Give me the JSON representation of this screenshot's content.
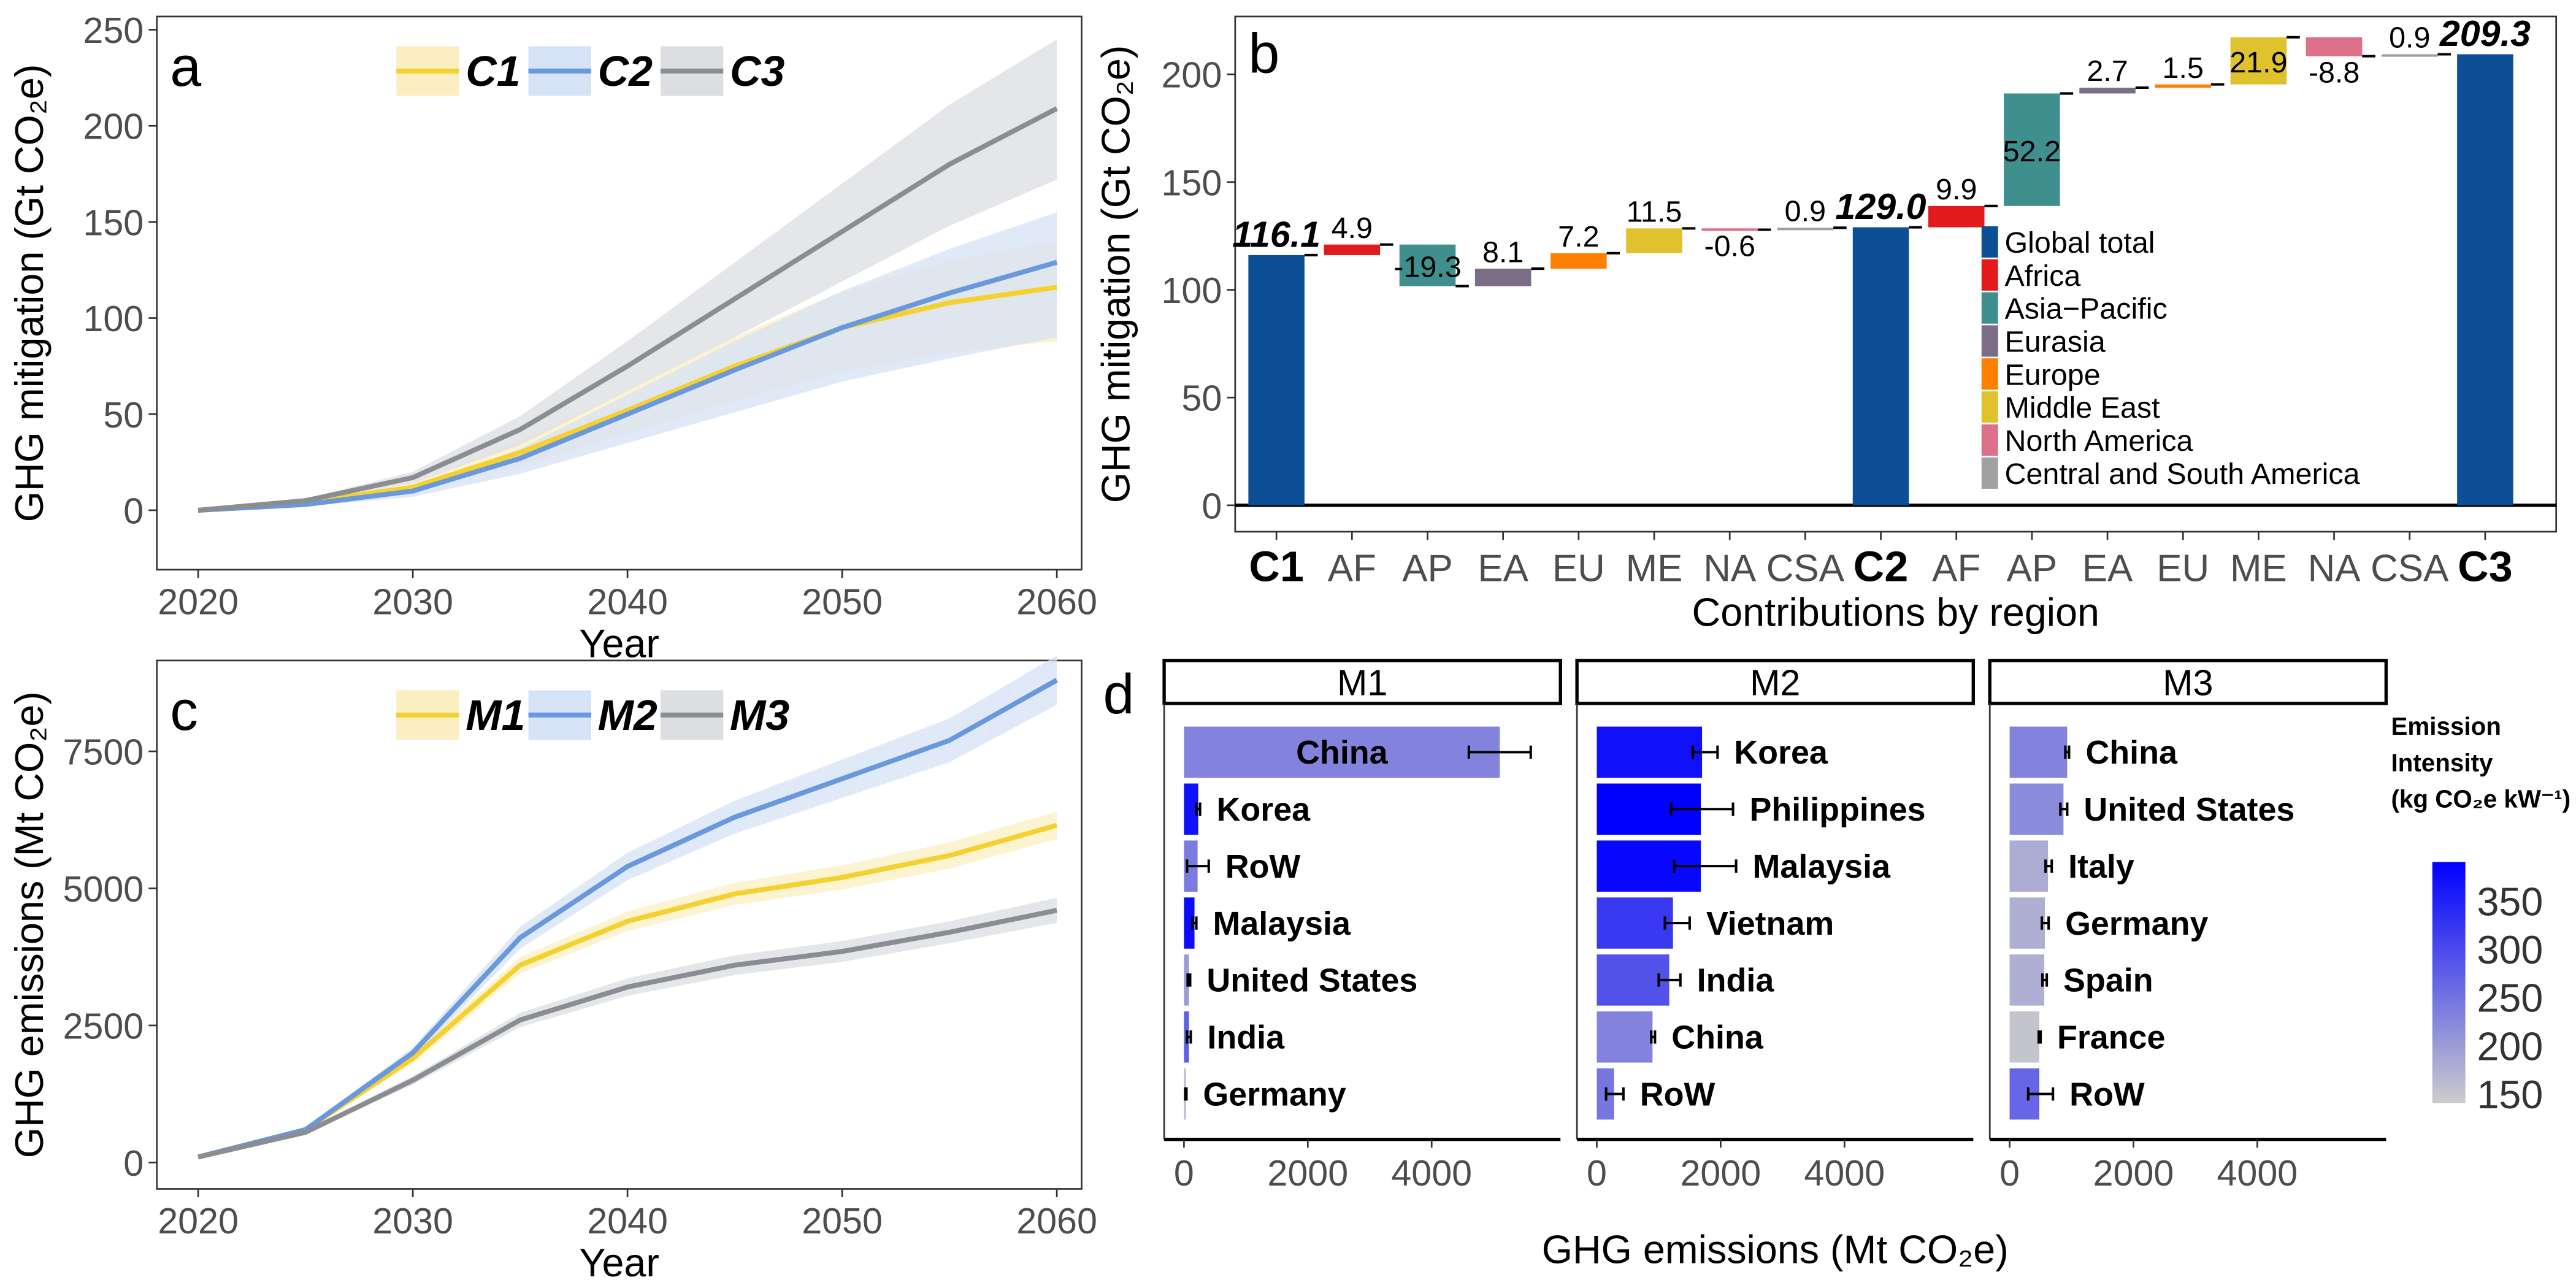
{
  "chart_data": [
    {
      "type": "line",
      "panel_label": "a",
      "xlabel": "Year",
      "ylabel": "GHG mitigation (Gt CO₂e)",
      "xlim": [
        2020,
        2060
      ],
      "ylim": [
        0,
        250
      ],
      "x_ticks": [
        2020,
        2030,
        2040,
        2050,
        2060
      ],
      "y_ticks": [
        0,
        50,
        100,
        150,
        200,
        250
      ],
      "legend_position": "top",
      "grid": false,
      "x": [
        2020,
        2025,
        2030,
        2035,
        2040,
        2045,
        2050,
        2055,
        2060
      ],
      "series": [
        {
          "name": "C1",
          "color": "#f5d130",
          "band_color": "#fbefc2",
          "values": [
            0,
            4,
            12,
            30,
            52,
            75,
            95,
            108,
            116
          ],
          "upper": [
            0,
            5,
            14,
            36,
            62,
            90,
            114,
            130,
            140
          ],
          "lower": [
            0,
            3,
            9,
            23,
            40,
            57,
            72,
            82,
            88
          ]
        },
        {
          "name": "C2",
          "color": "#6a98dc",
          "band_color": "#d6e2f6",
          "values": [
            0,
            3,
            10,
            27,
            50,
            73,
            95,
            113,
            129
          ],
          "upper": [
            0,
            4,
            12,
            32,
            60,
            88,
            114,
            136,
            155
          ],
          "lower": [
            0,
            2,
            7,
            19,
            35,
            51,
            67,
            79,
            90
          ]
        },
        {
          "name": "C3",
          "color": "#8a8d92",
          "band_color": "#dcdee1",
          "values": [
            0,
            5,
            17,
            42,
            75,
            110,
            145,
            180,
            209
          ],
          "upper": [
            0,
            6,
            20,
            49,
            88,
            129,
            170,
            211,
            245
          ],
          "lower": [
            0,
            4,
            14,
            34,
            62,
            90,
            119,
            148,
            172
          ]
        }
      ]
    },
    {
      "type": "bar",
      "subtype": "waterfall",
      "panel_label": "b",
      "xlabel": "Contributions by region",
      "ylabel": "GHG mitigation (Gt CO₂e)",
      "ylim": [
        0,
        225
      ],
      "y_ticks": [
        0,
        50,
        100,
        150,
        200
      ],
      "categories": [
        "C1",
        "AF",
        "AP",
        "EA",
        "EU",
        "ME",
        "NA",
        "CSA",
        "C2",
        "AF",
        "AP",
        "EA",
        "EU",
        "ME",
        "NA",
        "CSA",
        "C3"
      ],
      "kinds": [
        "total",
        "AF",
        "AP",
        "EA",
        "EU",
        "ME",
        "NA",
        "CSA",
        "total",
        "AF",
        "AP",
        "EA",
        "EU",
        "ME",
        "NA",
        "CSA",
        "total"
      ],
      "values": [
        116.1,
        4.9,
        -19.3,
        8.1,
        7.2,
        11.5,
        -0.6,
        0.9,
        129.0,
        9.9,
        52.2,
        2.7,
        1.5,
        21.9,
        -8.8,
        0.9,
        209.3
      ],
      "labels": [
        "116.1",
        "4.9",
        "-19.3",
        "8.1",
        "7.2",
        "11.5",
        "-0.6",
        "0.9",
        "129.0",
        "9.9",
        "52.2",
        "2.7",
        "1.5",
        "21.9",
        "-8.8",
        "0.9",
        "209.3"
      ],
      "legend_position": "center-right",
      "legend": [
        {
          "key": "total",
          "name": "Global total",
          "color": "#0d4f96"
        },
        {
          "key": "AF",
          "name": "Africa",
          "color": "#e31a1c"
        },
        {
          "key": "AP",
          "name": "Asia−Pacific",
          "color": "#3f8f8f"
        },
        {
          "key": "EA",
          "name": "Eurasia",
          "color": "#7b6d85"
        },
        {
          "key": "EU",
          "name": "Europe",
          "color": "#ff7f00"
        },
        {
          "key": "ME",
          "name": "Middle East",
          "color": "#e0c22e"
        },
        {
          "key": "NA",
          "name": "North America",
          "color": "#db7088"
        },
        {
          "key": "CSA",
          "name": "Central and South America",
          "color": "#a0a0a0"
        }
      ]
    },
    {
      "type": "line",
      "panel_label": "c",
      "xlabel": "Year",
      "ylabel": "GHG emissions (Mt CO₂e)",
      "xlim": [
        2020,
        2060
      ],
      "ylim": [
        0,
        9300
      ],
      "x_ticks": [
        2020,
        2030,
        2040,
        2050,
        2060
      ],
      "y_ticks": [
        0,
        2500,
        5000,
        7500
      ],
      "legend_position": "top",
      "grid": false,
      "x": [
        2020,
        2025,
        2030,
        2035,
        2040,
        2045,
        2050,
        2055,
        2060
      ],
      "series": [
        {
          "name": "M1",
          "color": "#f5d130",
          "band_color": "#fbefc2",
          "values": [
            100,
            600,
            1900,
            3600,
            4400,
            4900,
            5200,
            5600,
            6150
          ],
          "upper": [
            110,
            630,
            2000,
            3750,
            4580,
            5100,
            5420,
            5840,
            6400
          ],
          "lower": [
            90,
            570,
            1800,
            3450,
            4220,
            4700,
            4980,
            5360,
            5900
          ]
        },
        {
          "name": "M2",
          "color": "#6a98dc",
          "band_color": "#d6e2f6",
          "values": [
            100,
            600,
            2000,
            4100,
            5400,
            6300,
            7000,
            7700,
            8800
          ],
          "upper": [
            110,
            630,
            2100,
            4300,
            5650,
            6600,
            7350,
            8100,
            9250
          ],
          "lower": [
            90,
            570,
            1900,
            3900,
            5150,
            6000,
            6650,
            7300,
            8350
          ]
        },
        {
          "name": "M3",
          "color": "#8a8d92",
          "band_color": "#dcdee1",
          "values": [
            100,
            550,
            1500,
            2600,
            3200,
            3600,
            3850,
            4200,
            4600
          ],
          "upper": [
            110,
            580,
            1580,
            2730,
            3360,
            3780,
            4040,
            4400,
            4830
          ],
          "lower": [
            90,
            520,
            1420,
            2470,
            3040,
            3420,
            3660,
            4000,
            4370
          ]
        }
      ]
    },
    {
      "type": "bar",
      "orientation": "horizontal",
      "panel_label": "d",
      "xlabel": "GHG emissions (Mt CO₂e)",
      "xlim": [
        0,
        5800
      ],
      "x_ticks": [
        0,
        2000,
        4000
      ],
      "colorbar": {
        "title": [
          "Emission",
          "Intensity",
          "(kg CO₂e kW⁻¹)"
        ],
        "ticks": [
          150,
          200,
          250,
          300,
          350
        ],
        "range": [
          140,
          390
        ],
        "low_color": "#cccccc",
        "high_color": "#0000ff"
      },
      "facets": [
        {
          "name": "M1",
          "bars": [
            {
              "label": "China",
              "value": 5100,
              "err": [
                4600,
                5600
              ],
              "intensity": 230
            },
            {
              "label": "Korea",
              "value": 230,
              "err": [
                200,
                260
              ],
              "intensity": 370
            },
            {
              "label": "RoW",
              "value": 220,
              "err": [
                50,
                400
              ],
              "intensity": 240
            },
            {
              "label": "Malaysia",
              "value": 170,
              "err": [
                140,
                200
              ],
              "intensity": 375
            },
            {
              "label": "United States",
              "value": 80,
              "err": [
                60,
                100
              ],
              "intensity": 200
            },
            {
              "label": "India",
              "value": 80,
              "err": [
                50,
                110
              ],
              "intensity": 275
            },
            {
              "label": "Germany",
              "value": 30,
              "err": [
                20,
                40
              ],
              "intensity": 165
            }
          ]
        },
        {
          "name": "M2",
          "bars": [
            {
              "label": "Korea",
              "value": 1700,
              "err": [
                1550,
                1950
              ],
              "intensity": 370
            },
            {
              "label": "Philippines",
              "value": 1680,
              "err": [
                1200,
                2200
              ],
              "intensity": 390
            },
            {
              "label": "Malaysia",
              "value": 1680,
              "err": [
                1250,
                2250
              ],
              "intensity": 380
            },
            {
              "label": "Vietnam",
              "value": 1230,
              "err": [
                1100,
                1500
              ],
              "intensity": 320
            },
            {
              "label": "India",
              "value": 1170,
              "err": [
                1000,
                1350
              ],
              "intensity": 290
            },
            {
              "label": "China",
              "value": 900,
              "err": [
                880,
                940
              ],
              "intensity": 230
            },
            {
              "label": "RoW",
              "value": 280,
              "err": [
                150,
                430
              ],
              "intensity": 245
            }
          ]
        },
        {
          "name": "M3",
          "bars": [
            {
              "label": "China",
              "value": 930,
              "err": [
                900,
                960
              ],
              "intensity": 230
            },
            {
              "label": "United States",
              "value": 870,
              "err": [
                820,
                930
              ],
              "intensity": 220
            },
            {
              "label": "Italy",
              "value": 620,
              "err": [
                580,
                680
              ],
              "intensity": 180
            },
            {
              "label": "Germany",
              "value": 570,
              "err": [
                520,
                630
              ],
              "intensity": 175
            },
            {
              "label": "Spain",
              "value": 560,
              "err": [
                530,
                600
              ],
              "intensity": 175
            },
            {
              "label": "France",
              "value": 480,
              "err": [
                470,
                500
              ],
              "intensity": 150
            },
            {
              "label": "RoW",
              "value": 480,
              "err": [
                300,
                700
              ],
              "intensity": 265
            }
          ]
        }
      ]
    }
  ]
}
